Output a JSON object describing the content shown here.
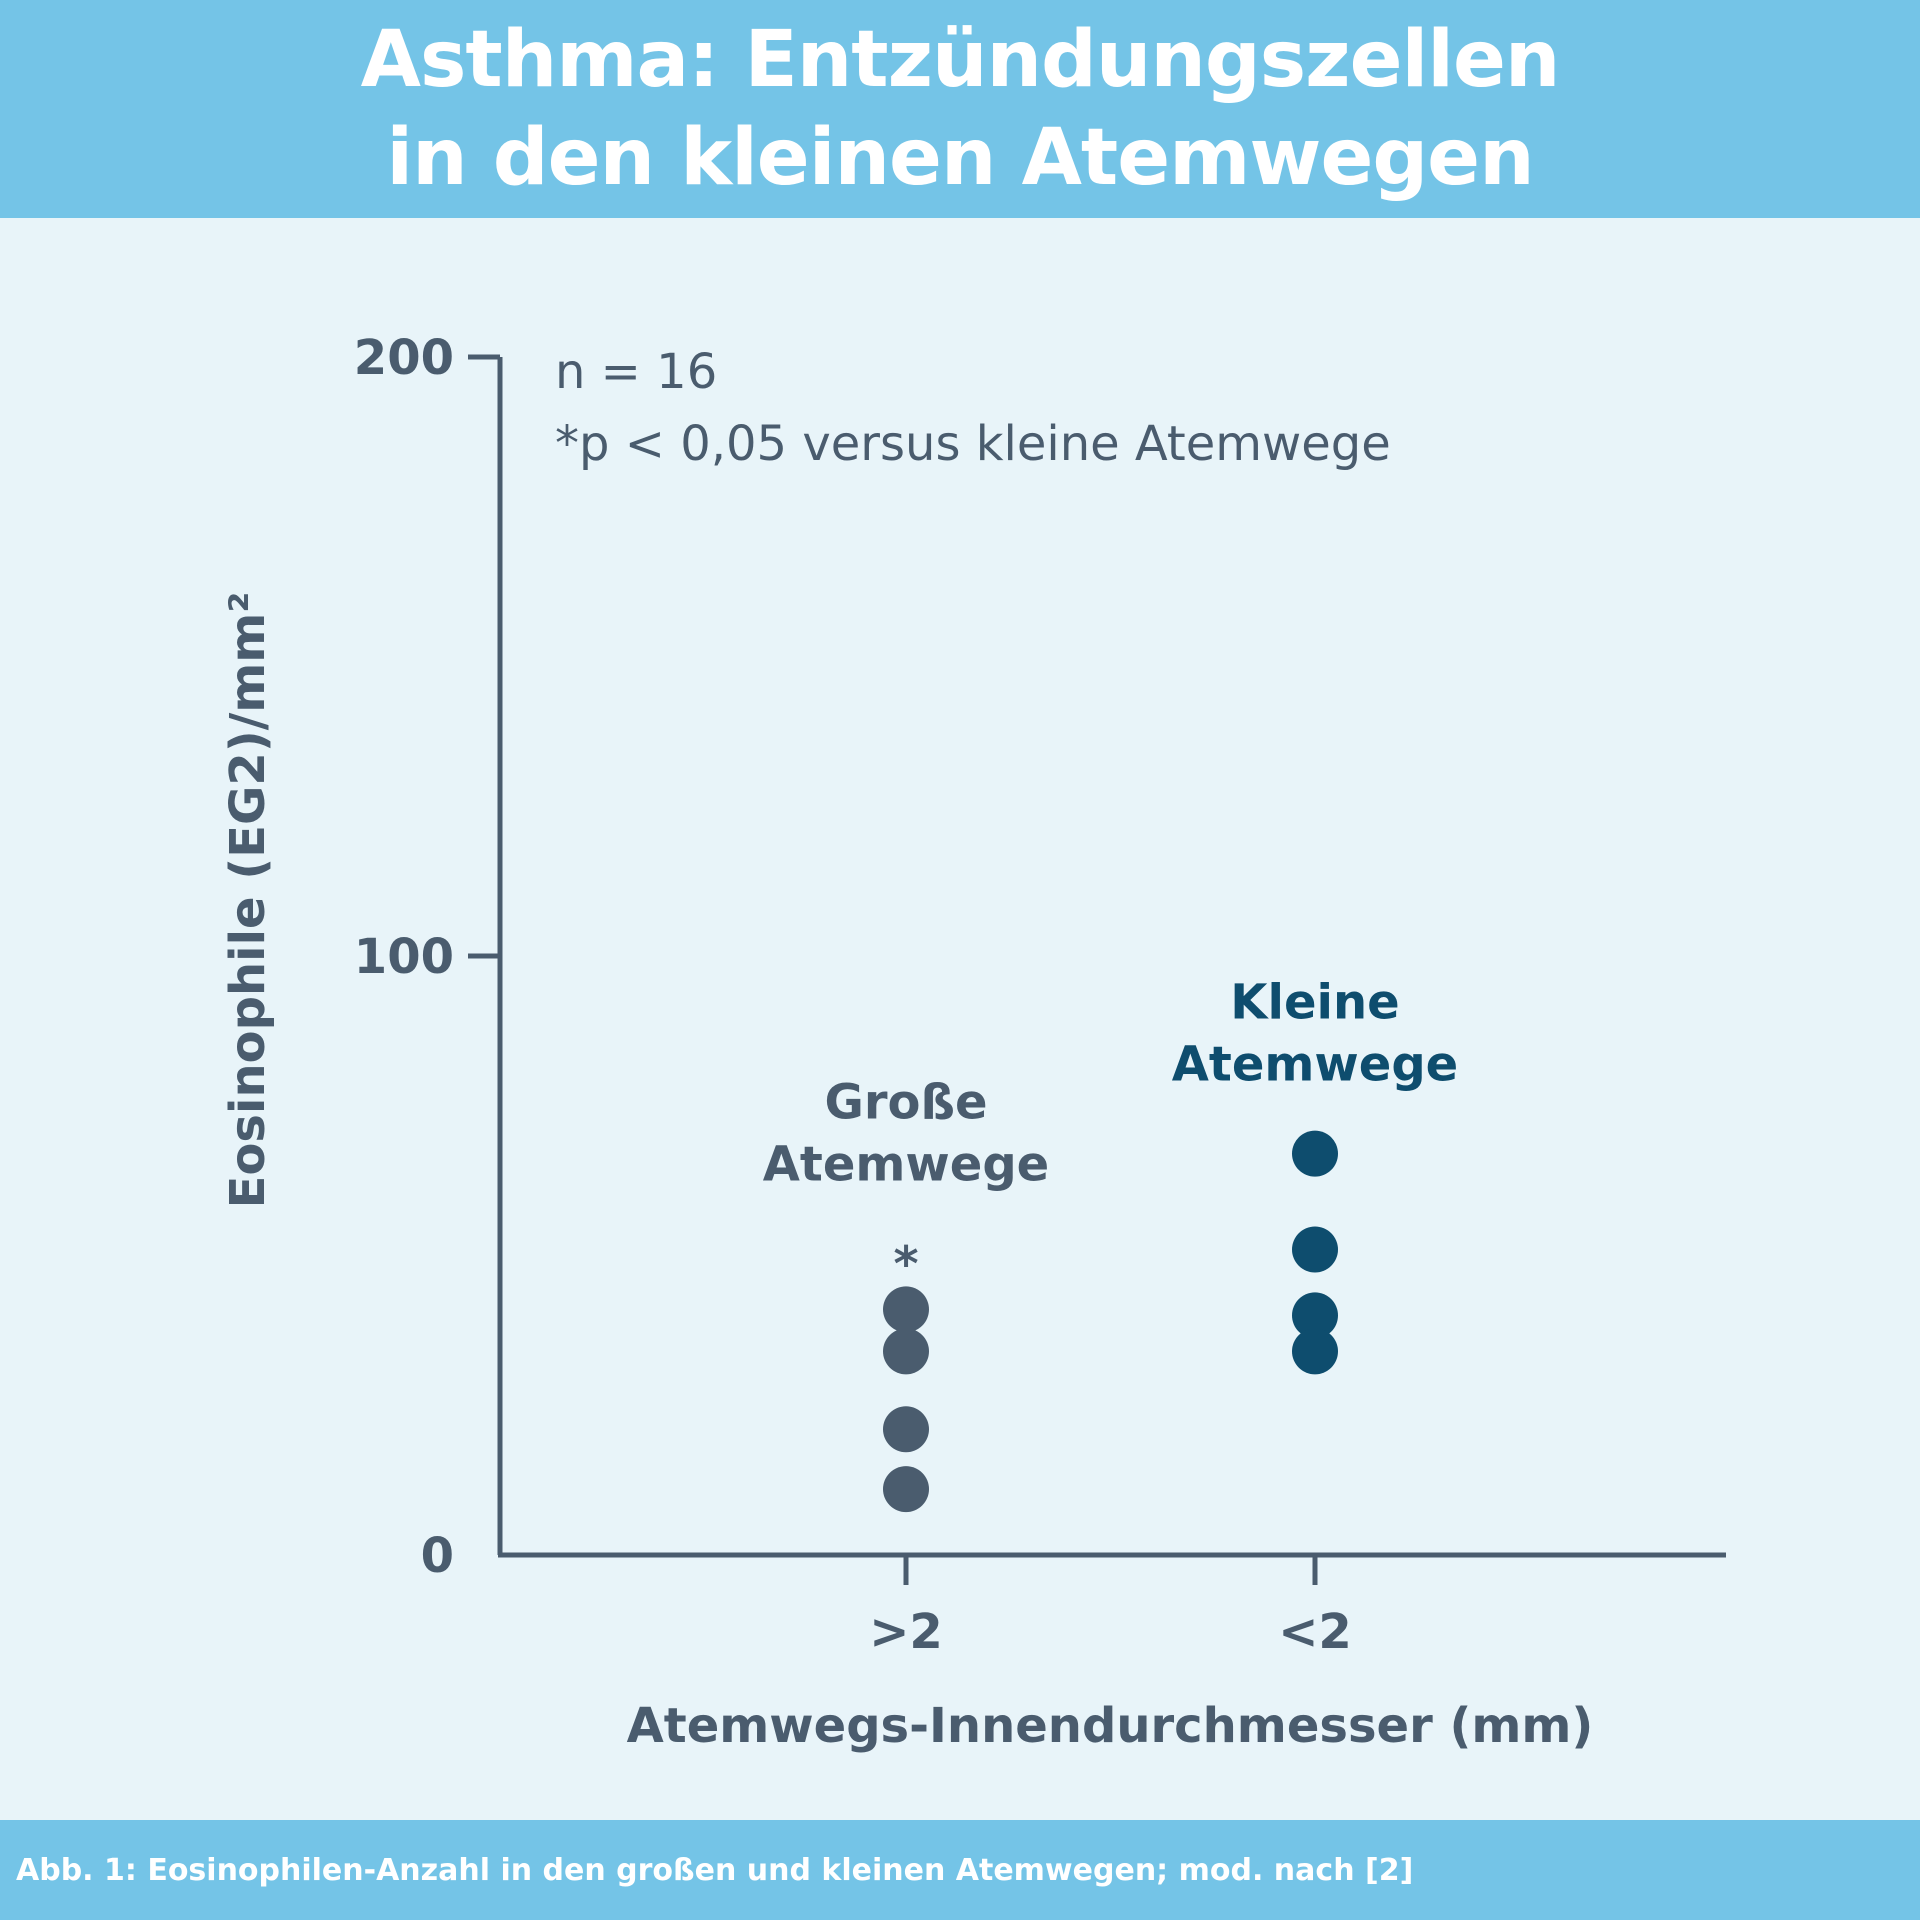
{
  "header": {
    "title_line1": "Asthma: Entzündungszellen",
    "title_line2": "in den kleinen Atemwegen"
  },
  "footer": {
    "caption": "Abb. 1: Eosinophilen-Anzahl in den großen und kleinen Atemwegen; mod. nach [2]"
  },
  "colors": {
    "header_bg": "#74c4e7",
    "panel_bg": "#e8f4f9",
    "axis": "#4a5c6e",
    "large_airways": "#4a5c6e",
    "small_airways": "#0e4d6e"
  },
  "chart_data": {
    "type": "scatter",
    "xlabel": "Atemwegs-Innendurchmesser (mm)",
    "ylabel": "Eosinophile (EG2)/mm²",
    "ylim": [
      0,
      200
    ],
    "yticks": [
      0,
      100,
      200
    ],
    "categories": [
      ">2",
      "<2"
    ],
    "notes": [
      "n = 16",
      "*p < 0,05 versus kleine Atemwege"
    ],
    "grid": false,
    "series": [
      {
        "name_lines": [
          "Große",
          "Atemwege"
        ],
        "category": ">2",
        "marker": "*",
        "color": "#4a5c6e",
        "values": [
          41,
          34,
          21,
          11
        ]
      },
      {
        "name_lines": [
          "Kleine",
          "Atemwege"
        ],
        "category": "<2",
        "color": "#0e4d6e",
        "values": [
          67,
          51,
          40,
          34
        ]
      }
    ]
  }
}
